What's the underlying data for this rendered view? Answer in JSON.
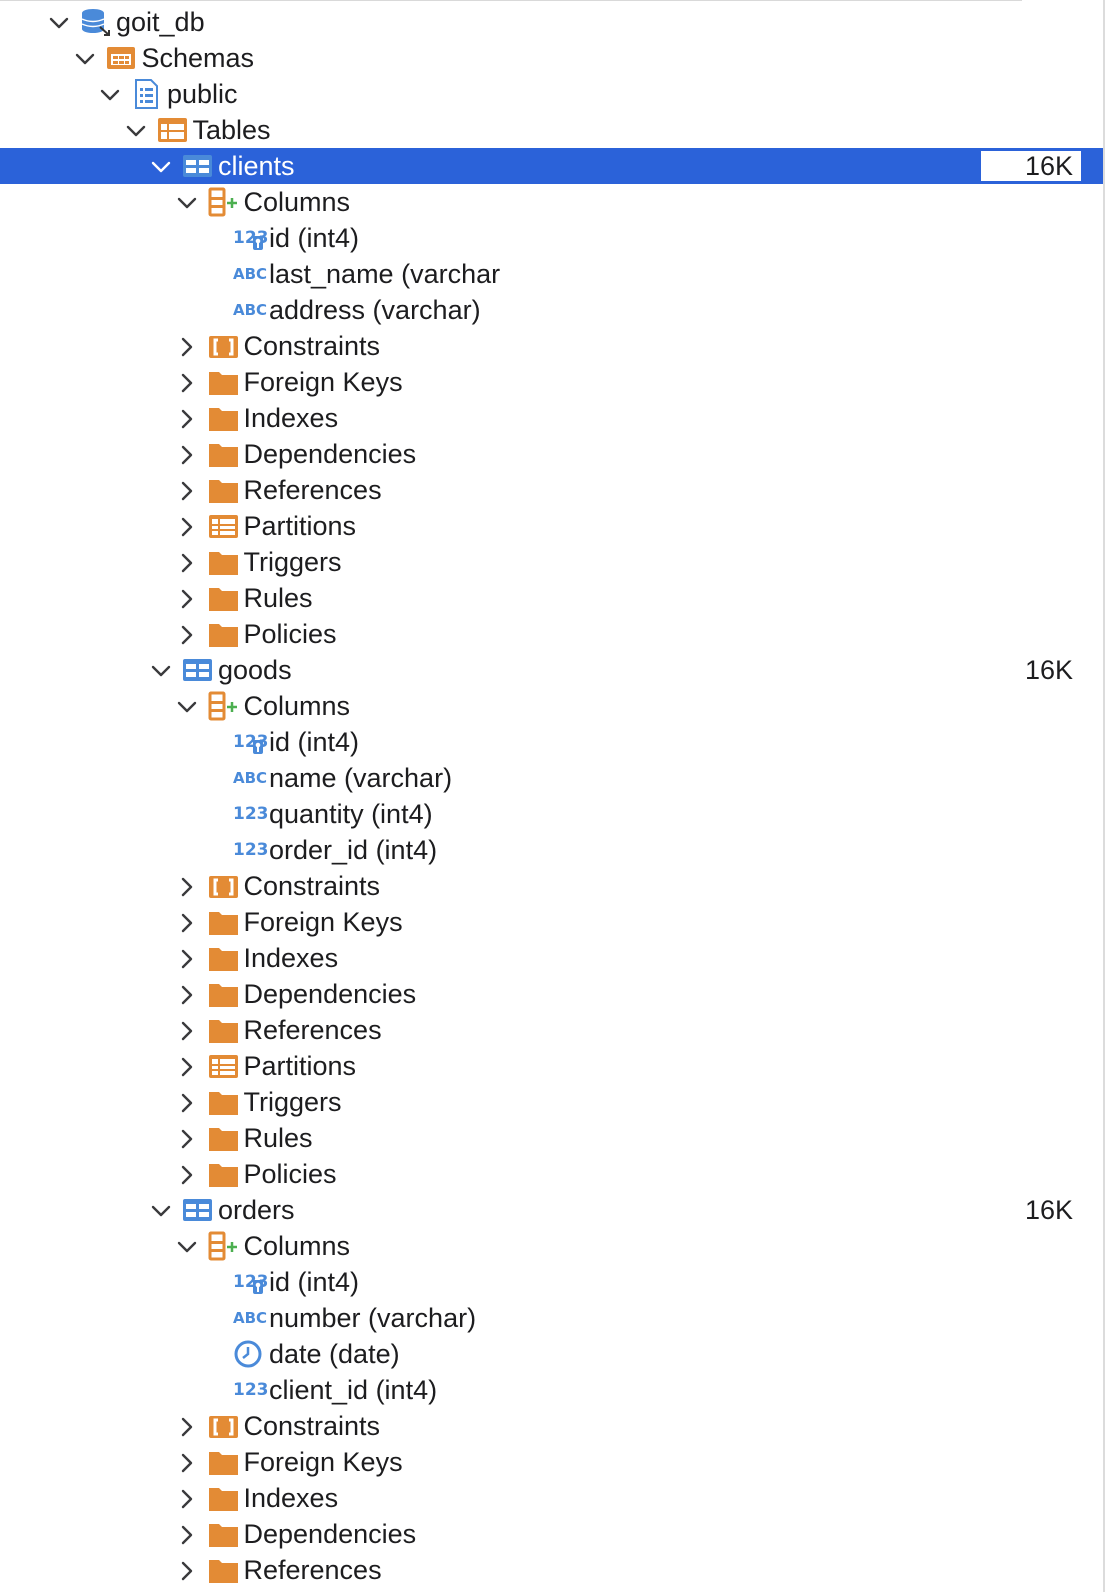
{
  "colors": {
    "selection": "#2b62d9",
    "folder": "#e38b35",
    "type_icon": "#4a8ad9",
    "text": "#1d1d1f"
  },
  "tree": [
    {
      "depth": 0,
      "expanded": true,
      "icon": "database-icon",
      "label": "goit_db"
    },
    {
      "depth": 1,
      "expanded": true,
      "icon": "schemas-icon",
      "label": "Schemas"
    },
    {
      "depth": 2,
      "expanded": true,
      "icon": "schema-icon",
      "label": "public"
    },
    {
      "depth": 3,
      "expanded": true,
      "icon": "tables-folder-icon",
      "label": "Tables"
    },
    {
      "depth": 4,
      "expanded": true,
      "icon": "table-icon",
      "label": "clients",
      "size": "16K",
      "selected": true
    },
    {
      "depth": 5,
      "expanded": true,
      "icon": "columns-icon",
      "label": "Columns"
    },
    {
      "depth": 6,
      "icon": "key-int-icon",
      "label": "id (int4)"
    },
    {
      "depth": 6,
      "icon": "abc-icon",
      "label": "last_name (varchar"
    },
    {
      "depth": 6,
      "icon": "abc-icon",
      "label": "address (varchar)"
    },
    {
      "depth": 5,
      "expanded": false,
      "icon": "constraints-icon",
      "label": "Constraints"
    },
    {
      "depth": 5,
      "expanded": false,
      "icon": "folder-icon",
      "label": "Foreign Keys"
    },
    {
      "depth": 5,
      "expanded": false,
      "icon": "folder-icon",
      "label": "Indexes"
    },
    {
      "depth": 5,
      "expanded": false,
      "icon": "folder-icon",
      "label": "Dependencies"
    },
    {
      "depth": 5,
      "expanded": false,
      "icon": "folder-icon",
      "label": "References"
    },
    {
      "depth": 5,
      "expanded": false,
      "icon": "partitions-icon",
      "label": "Partitions"
    },
    {
      "depth": 5,
      "expanded": false,
      "icon": "folder-icon",
      "label": "Triggers"
    },
    {
      "depth": 5,
      "expanded": false,
      "icon": "folder-icon",
      "label": "Rules"
    },
    {
      "depth": 5,
      "expanded": false,
      "icon": "folder-icon",
      "label": "Policies"
    },
    {
      "depth": 4,
      "expanded": true,
      "icon": "table-icon",
      "label": "goods",
      "size": "16K"
    },
    {
      "depth": 5,
      "expanded": true,
      "icon": "columns-icon",
      "label": "Columns"
    },
    {
      "depth": 6,
      "icon": "key-int-icon",
      "label": "id (int4)"
    },
    {
      "depth": 6,
      "icon": "abc-icon",
      "label": "name (varchar)"
    },
    {
      "depth": 6,
      "icon": "int-icon",
      "label": "quantity (int4)"
    },
    {
      "depth": 6,
      "icon": "int-icon",
      "label": "order_id (int4)"
    },
    {
      "depth": 5,
      "expanded": false,
      "icon": "constraints-icon",
      "label": "Constraints"
    },
    {
      "depth": 5,
      "expanded": false,
      "icon": "folder-icon",
      "label": "Foreign Keys"
    },
    {
      "depth": 5,
      "expanded": false,
      "icon": "folder-icon",
      "label": "Indexes"
    },
    {
      "depth": 5,
      "expanded": false,
      "icon": "folder-icon",
      "label": "Dependencies"
    },
    {
      "depth": 5,
      "expanded": false,
      "icon": "folder-icon",
      "label": "References"
    },
    {
      "depth": 5,
      "expanded": false,
      "icon": "partitions-icon",
      "label": "Partitions"
    },
    {
      "depth": 5,
      "expanded": false,
      "icon": "folder-icon",
      "label": "Triggers"
    },
    {
      "depth": 5,
      "expanded": false,
      "icon": "folder-icon",
      "label": "Rules"
    },
    {
      "depth": 5,
      "expanded": false,
      "icon": "folder-icon",
      "label": "Policies"
    },
    {
      "depth": 4,
      "expanded": true,
      "icon": "table-icon",
      "label": "orders",
      "size": "16K"
    },
    {
      "depth": 5,
      "expanded": true,
      "icon": "columns-icon",
      "label": "Columns"
    },
    {
      "depth": 6,
      "icon": "key-int-icon",
      "label": "id (int4)"
    },
    {
      "depth": 6,
      "icon": "abc-icon",
      "label": "number (varchar)"
    },
    {
      "depth": 6,
      "icon": "clock-icon",
      "label": "date (date)"
    },
    {
      "depth": 6,
      "icon": "int-icon",
      "label": "client_id (int4)"
    },
    {
      "depth": 5,
      "expanded": false,
      "icon": "constraints-icon",
      "label": "Constraints"
    },
    {
      "depth": 5,
      "expanded": false,
      "icon": "folder-icon",
      "label": "Foreign Keys"
    },
    {
      "depth": 5,
      "expanded": false,
      "icon": "folder-icon",
      "label": "Indexes"
    },
    {
      "depth": 5,
      "expanded": false,
      "icon": "folder-icon",
      "label": "Dependencies"
    },
    {
      "depth": 5,
      "expanded": false,
      "icon": "folder-icon",
      "label": "References"
    }
  ]
}
